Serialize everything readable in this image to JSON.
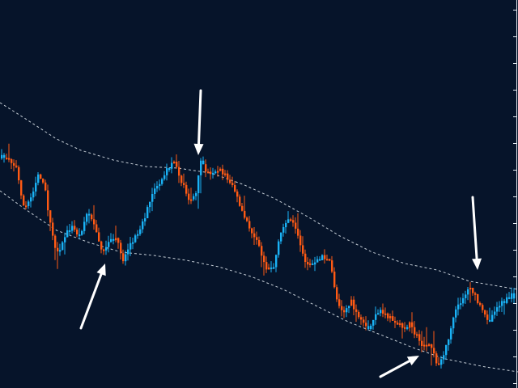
{
  "chart_data": {
    "type": "candlestick",
    "title": "",
    "xlabel": "",
    "ylabel": "",
    "grid": false,
    "colors": {
      "background": "#06142a",
      "up": "#1ab2f5",
      "down": "#ff5a14",
      "band": "#e8eef5",
      "arrow": "#ffffff"
    },
    "price_path": [
      [
        0,
        196
      ],
      [
        12,
        194
      ],
      [
        22,
        208
      ],
      [
        32,
        260
      ],
      [
        40,
        244
      ],
      [
        50,
        212
      ],
      [
        58,
        238
      ],
      [
        66,
        290
      ],
      [
        74,
        318
      ],
      [
        82,
        292
      ],
      [
        90,
        280
      ],
      [
        100,
        292
      ],
      [
        110,
        262
      ],
      [
        120,
        280
      ],
      [
        128,
        316
      ],
      [
        136,
        300
      ],
      [
        146,
        294
      ],
      [
        154,
        322
      ],
      [
        162,
        302
      ],
      [
        170,
        292
      ],
      [
        180,
        270
      ],
      [
        190,
        242
      ],
      [
        200,
        224
      ],
      [
        210,
        208
      ],
      [
        218,
        196
      ],
      [
        226,
        226
      ],
      [
        236,
        246
      ],
      [
        244,
        240
      ],
      [
        250,
        200
      ],
      [
        258,
        214
      ],
      [
        270,
        210
      ],
      [
        278,
        214
      ],
      [
        290,
        230
      ],
      [
        300,
        262
      ],
      [
        310,
        282
      ],
      [
        320,
        300
      ],
      [
        330,
        330
      ],
      [
        340,
        330
      ],
      [
        348,
        292
      ],
      [
        356,
        270
      ],
      [
        364,
        278
      ],
      [
        372,
        300
      ],
      [
        380,
        326
      ],
      [
        390,
        328
      ],
      [
        400,
        316
      ],
      [
        410,
        326
      ],
      [
        418,
        370
      ],
      [
        426,
        386
      ],
      [
        436,
        374
      ],
      [
        444,
        394
      ],
      [
        454,
        406
      ],
      [
        462,
        400
      ],
      [
        470,
        384
      ],
      [
        480,
        392
      ],
      [
        490,
        396
      ],
      [
        498,
        406
      ],
      [
        508,
        402
      ],
      [
        518,
        418
      ],
      [
        526,
        430
      ],
      [
        534,
        426
      ],
      [
        542,
        452
      ],
      [
        550,
        440
      ],
      [
        558,
        410
      ],
      [
        566,
        382
      ],
      [
        576,
        364
      ],
      [
        584,
        356
      ],
      [
        592,
        374
      ],
      [
        600,
        390
      ],
      [
        608,
        396
      ],
      [
        614,
        380
      ],
      [
        624,
        374
      ],
      [
        634,
        366
      ]
    ],
    "band_upper": [
      [
        0,
        127
      ],
      [
        30,
        146
      ],
      [
        70,
        172
      ],
      [
        100,
        186
      ],
      [
        140,
        198
      ],
      [
        180,
        206
      ],
      [
        220,
        208
      ],
      [
        260,
        214
      ],
      [
        300,
        228
      ],
      [
        340,
        246
      ],
      [
        380,
        268
      ],
      [
        420,
        292
      ],
      [
        460,
        312
      ],
      [
        500,
        326
      ],
      [
        540,
        334
      ],
      [
        580,
        348
      ],
      [
        640,
        358
      ]
    ],
    "band_lower": [
      [
        0,
        236
      ],
      [
        30,
        258
      ],
      [
        70,
        285
      ],
      [
        110,
        300
      ],
      [
        150,
        312
      ],
      [
        190,
        316
      ],
      [
        230,
        322
      ],
      [
        270,
        330
      ],
      [
        310,
        342
      ],
      [
        350,
        358
      ],
      [
        390,
        378
      ],
      [
        430,
        398
      ],
      [
        470,
        414
      ],
      [
        510,
        430
      ],
      [
        550,
        444
      ],
      [
        600,
        454
      ],
      [
        640,
        460
      ]
    ],
    "arrows": [
      {
        "name": "buy-arrow-1",
        "type": "buy",
        "from": [
          100,
          406
        ],
        "to": [
          130,
          326
        ]
      },
      {
        "name": "sell-arrow-1",
        "type": "sell",
        "from": [
          248,
          112
        ],
        "to": [
          245,
          192
        ]
      },
      {
        "name": "buy-arrow-2",
        "type": "buy",
        "from": [
          470,
          466
        ],
        "to": [
          518,
          440
        ]
      },
      {
        "name": "sell-arrow-2",
        "type": "sell",
        "from": [
          584,
          244
        ],
        "to": [
          590,
          334
        ]
      }
    ]
  }
}
